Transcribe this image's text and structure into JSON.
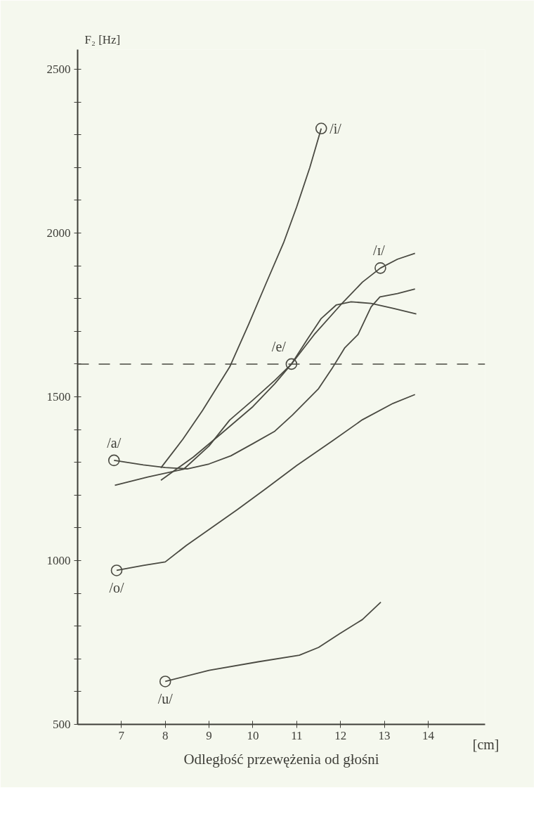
{
  "chart_data": {
    "type": "line",
    "xlabel": "Odległość przewężenia od głośni",
    "ylabel": "F₂ [Hz]",
    "xlim": [
      6,
      15.3
    ],
    "ylim": [
      500,
      2560
    ],
    "xticks": [
      7,
      8,
      9,
      10,
      11,
      12,
      13,
      14
    ],
    "yticks": [
      500,
      {
        "value": 600,
        "label": null
      },
      {
        "value": 700,
        "label": null
      },
      {
        "value": 800,
        "label": null
      },
      {
        "value": 900,
        "label": null
      },
      1000,
      {
        "value": 1100,
        "label": null
      },
      {
        "value": 1200,
        "label": null
      },
      {
        "value": 1300,
        "label": null
      },
      {
        "value": 1400,
        "label": null
      },
      1500,
      {
        "value": 1600,
        "label": null
      },
      {
        "value": 1700,
        "label": null
      },
      {
        "value": 1800,
        "label": null
      },
      {
        "value": 1900,
        "label": null
      },
      2000,
      {
        "value": 2100,
        "label": null
      },
      {
        "value": 2200,
        "label": null
      },
      {
        "value": 2300,
        "label": null
      },
      {
        "value": 2400,
        "label": null
      },
      2500
    ],
    "grid": false,
    "marker": "none",
    "line_style": "solid",
    "series": [
      {
        "color": "#4a4a42",
        "x": [
          7.9,
          8.4,
          8.85,
          9.47,
          9.9,
          10.3,
          10.7,
          11.0,
          11.3,
          11.56
        ],
        "values": [
          1283,
          1370,
          1458,
          1591,
          1720,
          1846,
          1970,
          2080,
          2200,
          2319
        ]
      },
      {
        "color": "#4a4a42",
        "x": [
          7.9,
          8.64,
          9.3,
          10.0,
          10.5,
          10.88,
          11.4,
          12.0,
          12.5,
          12.91,
          13.3,
          13.7
        ],
        "values": [
          1245,
          1316,
          1390,
          1470,
          1540,
          1600,
          1690,
          1780,
          1850,
          1893,
          1920,
          1938
        ]
      },
      {
        "color": "#4a4a42",
        "x": [
          6.85,
          7.6,
          8.42,
          9.0,
          9.47,
          10.0,
          10.5,
          10.88,
          11.24,
          11.56,
          11.9,
          12.24,
          12.7,
          13.2,
          13.73
        ],
        "values": [
          1230,
          1255,
          1279,
          1350,
          1429,
          1490,
          1550,
          1600,
          1675,
          1739,
          1780,
          1790,
          1785,
          1770,
          1753
        ]
      },
      {
        "color": "#4a4a42",
        "x": [
          6.83,
          7.5,
          8.0,
          8.5,
          9.0,
          9.5,
          10.0,
          10.5,
          10.9,
          11.5,
          11.8,
          12.1,
          12.4,
          12.7,
          12.9,
          13.3,
          13.7
        ],
        "values": [
          1306,
          1292,
          1284,
          1280,
          1295,
          1320,
          1357,
          1395,
          1444,
          1525,
          1585,
          1650,
          1690,
          1775,
          1805,
          1815,
          1829
        ]
      },
      {
        "color": "#4a4a42",
        "x": [
          6.89,
          7.5,
          8.0,
          8.48,
          9.0,
          9.65,
          10.3,
          11.0,
          11.82,
          12.5,
          13.2,
          13.7
        ],
        "values": [
          970,
          985,
          996,
          1046,
          1095,
          1156,
          1220,
          1290,
          1366,
          1430,
          1480,
          1507
        ]
      },
      {
        "color": "#4a4a42",
        "x": [
          8.0,
          9.0,
          10.12,
          11.06,
          11.5,
          11.98,
          12.5,
          12.92
        ],
        "values": [
          631,
          665,
          691,
          711,
          735,
          777,
          820,
          873
        ]
      },
      {
        "type": "scatter",
        "marker": "circle",
        "color": "#4a4a42",
        "x": [
          11.56,
          12.91,
          10.88,
          6.83,
          6.89,
          8.0
        ],
        "values": [
          2319,
          1893,
          1600,
          1306,
          970,
          631
        ]
      }
    ],
    "ref_lines": [
      {
        "axis": "y",
        "value": 1600,
        "line_style": "dashed",
        "color": "#4a4a42"
      }
    ],
    "annotations": [
      {
        "text": "/i/",
        "x": 11.56,
        "y": 2319
      },
      {
        "text": "/ɪ/",
        "x": 12.91,
        "y": 1893
      },
      {
        "text": "/e/",
        "x": 10.88,
        "y": 1600
      },
      {
        "text": "/a/",
        "x": 6.83,
        "y": 1306
      },
      {
        "text": "/o/",
        "x": 6.89,
        "y": 970
      },
      {
        "text": "/u/",
        "x": 8.0,
        "y": 631
      },
      "[cm]"
    ]
  }
}
